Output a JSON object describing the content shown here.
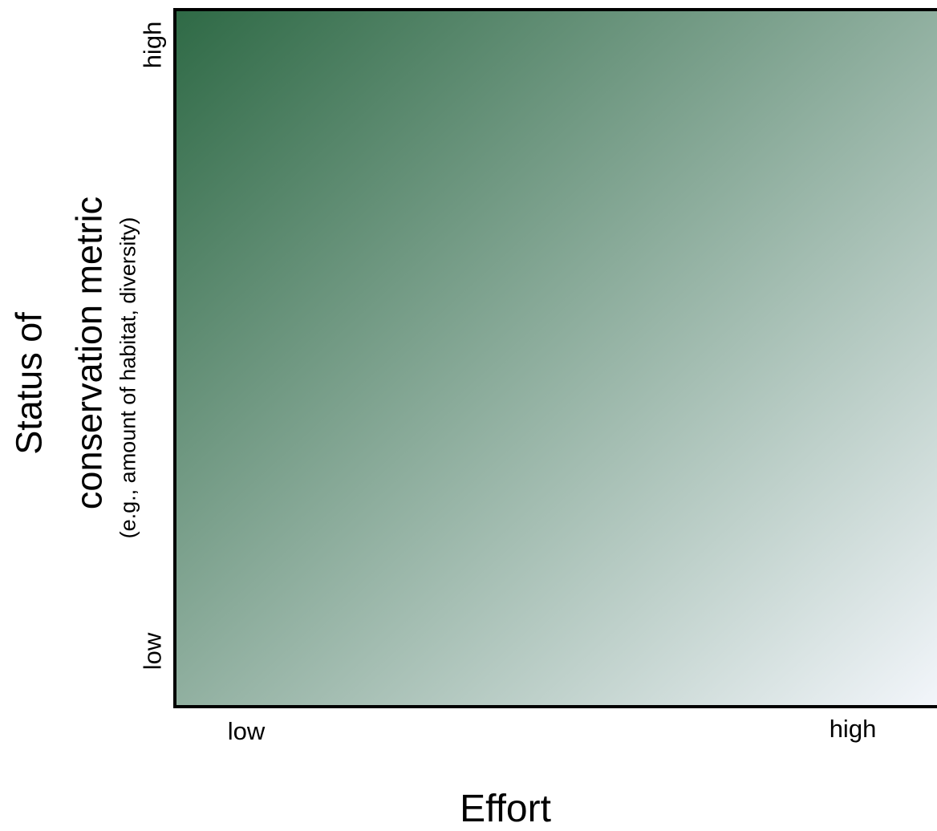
{
  "colors": {
    "gradient_dark": "#2f6a46",
    "gradient_light": "#f3f6fb",
    "axis": "#000000"
  },
  "y_axis": {
    "title_line1": "Status of",
    "title_line2": "conservation metric",
    "title_line3": "(e.g., amount of  habitat, diversity)",
    "tick_high": "high",
    "tick_low": "low"
  },
  "x_axis": {
    "title": "Effort",
    "tick_low": "low",
    "tick_high": "high"
  }
}
